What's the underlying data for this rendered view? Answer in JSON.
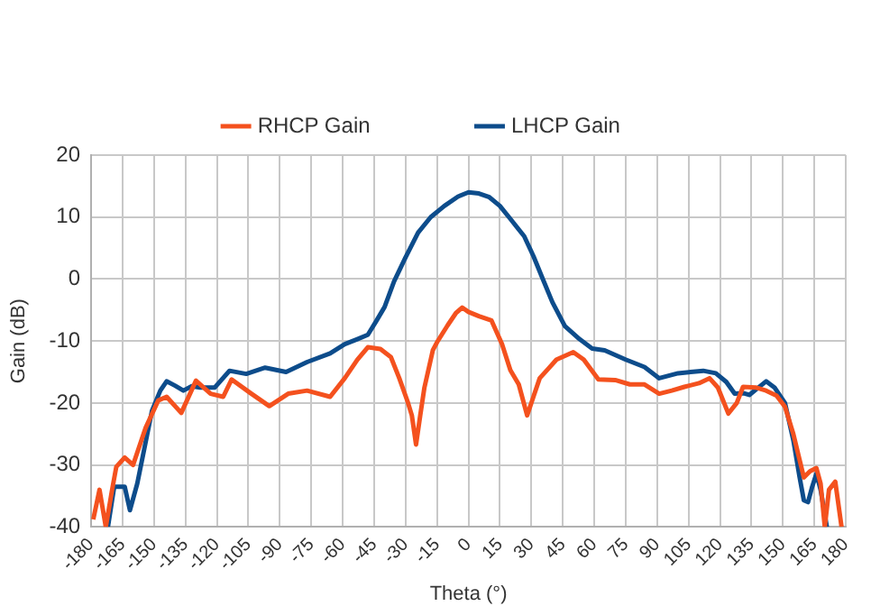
{
  "chart_data": {
    "type": "line",
    "xlabel": "Theta (°)",
    "ylabel": "Gain (dB)",
    "xlim": [
      -180,
      180
    ],
    "xticks": [
      -180,
      -165,
      -150,
      -135,
      -120,
      -105,
      -90,
      -75,
      -60,
      -45,
      -30,
      -15,
      0,
      15,
      30,
      45,
      60,
      75,
      90,
      105,
      120,
      135,
      150,
      165,
      180
    ],
    "ylim": [
      -40,
      20
    ],
    "yticks": [
      -40,
      -30,
      -20,
      -10,
      0,
      10,
      20
    ],
    "grid": true,
    "legend": "top",
    "marker": "none",
    "line_style": "solid",
    "series": [
      {
        "name": "RHCP Gain",
        "color": "#f4511e",
        "x": [
          -179,
          -176,
          -173,
          -170,
          -168,
          -164,
          -160,
          -154,
          -148,
          -144,
          -137,
          -130,
          -123,
          -117,
          -113,
          -104,
          -95,
          -86,
          -77,
          -66,
          -59,
          -53,
          -48,
          -42,
          -37,
          -33,
          -29,
          -27,
          -25,
          -23,
          -21,
          -17,
          -15,
          -10,
          -6,
          -3,
          0,
          5,
          11,
          16,
          20,
          24,
          28,
          31,
          34,
          38,
          42,
          50,
          55,
          62,
          70,
          77,
          84,
          91,
          97,
          103,
          110,
          115,
          119,
          124,
          128,
          131,
          137,
          142,
          147,
          151,
          155,
          160,
          163,
          166,
          168,
          170,
          172,
          175,
          178
        ],
        "values": [
          -38.8,
          -34,
          -40,
          -34,
          -30.3,
          -28.8,
          -30,
          -24,
          -19.6,
          -19,
          -21.6,
          -16.4,
          -18.5,
          -19,
          -16.2,
          -18.4,
          -20.5,
          -18.5,
          -18,
          -19,
          -16,
          -13,
          -11,
          -11.3,
          -12.6,
          -16,
          -19.8,
          -22,
          -26.7,
          -22,
          -17.5,
          -11.5,
          -10.2,
          -7.5,
          -5.5,
          -4.6,
          -5.3,
          -6,
          -6.7,
          -10.5,
          -14.7,
          -17,
          -22,
          -19,
          -16,
          -14.5,
          -13,
          -11.8,
          -13,
          -16.2,
          -16.3,
          -17,
          -17,
          -18.5,
          -18,
          -17.4,
          -16.8,
          -16,
          -17.5,
          -21.7,
          -20,
          -17.4,
          -17.5,
          -18,
          -18.8,
          -20.6,
          -25,
          -32,
          -31,
          -30.5,
          -33,
          -40,
          -34,
          -32.7,
          -40
        ]
      },
      {
        "name": "LHCP Gain",
        "color": "#0d4c8b",
        "x": [
          -172,
          -169,
          -164,
          -161.5,
          -158,
          -151,
          -147,
          -144,
          -140,
          -136,
          -132,
          -128,
          -121,
          -114,
          -106,
          -97,
          -87,
          -77,
          -66,
          -59,
          -53,
          -48,
          -44,
          -40,
          -35.5,
          -30,
          -24,
          -18,
          -11.5,
          -5,
          0,
          5,
          10,
          15,
          20,
          26.6,
          31,
          35,
          40,
          46,
          53,
          59,
          65,
          75,
          84,
          91,
          100,
          106,
          112,
          118,
          123,
          127,
          131,
          134,
          138,
          142,
          146,
          151,
          155,
          158,
          160,
          162,
          164,
          166,
          168,
          170,
          171
        ],
        "values": [
          -40,
          -33.5,
          -33.5,
          -37.3,
          -33,
          -21.3,
          -18,
          -16.5,
          -17.2,
          -18,
          -17.3,
          -17.5,
          -17.5,
          -14.8,
          -15.3,
          -14.3,
          -15,
          -13.4,
          -12,
          -10.5,
          -9.7,
          -9,
          -6.8,
          -4.5,
          -0.4,
          3.5,
          7.5,
          10,
          11.8,
          13.3,
          14,
          13.8,
          13.2,
          11.8,
          9.7,
          6.9,
          3.7,
          0.4,
          -3.7,
          -7.6,
          -9.7,
          -11.2,
          -11.5,
          -13,
          -14.2,
          -16,
          -15.2,
          -15,
          -14.8,
          -15.2,
          -16.6,
          -18.5,
          -18.4,
          -18.7,
          -17.6,
          -16.5,
          -17.5,
          -20,
          -26,
          -32,
          -35.7,
          -36,
          -33.5,
          -31.4,
          -34,
          -38,
          -40
        ]
      }
    ]
  }
}
